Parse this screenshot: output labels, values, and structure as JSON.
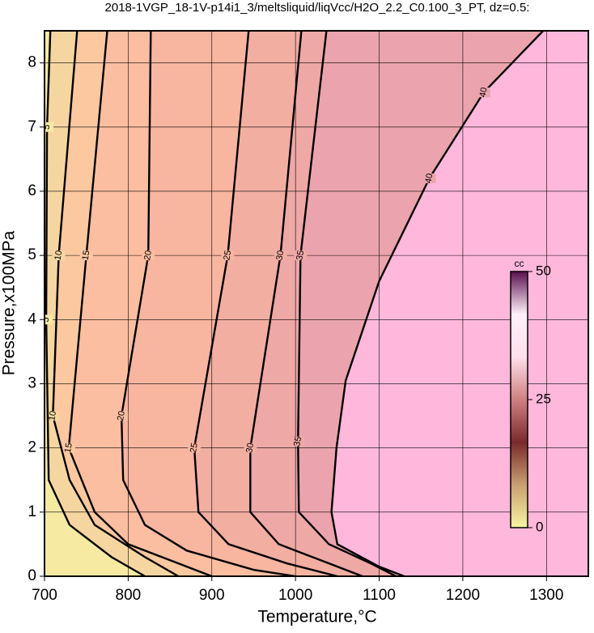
{
  "chart_data": {
    "type": "contour",
    "title": "2018-1VGP_18-1V-p14i1_3/meltsliquid/liqVcc/H2O_2.2_C0.100_3_PT, dz=0.5:",
    "xlabel": "Temperature,°C",
    "ylabel": "Pressure,x100MPa",
    "xlim": [
      700,
      1350
    ],
    "ylim": [
      0,
      8.5
    ],
    "xticks": [
      700,
      800,
      900,
      1000,
      1100,
      1200,
      1300
    ],
    "yticks": [
      0,
      1,
      2,
      3,
      4,
      5,
      6,
      7,
      8
    ],
    "grid": true,
    "above_color": "#ffb8dc",
    "contours": [
      {
        "level": 40,
        "color": "#eba4ad",
        "x": [
          1296,
          1225,
          1160,
          1100,
          1060,
          1049,
          1043,
          1050,
          1100,
          1130
        ],
        "y": [
          8.5,
          7.54,
          6.2,
          4.6,
          3.05,
          2,
          1,
          0.5,
          0.15,
          0
        ]
      },
      {
        "level": 35,
        "color": "#eea8a6",
        "x": [
          1037,
          1006,
          1003,
          1004,
          1040,
          1090,
          1120
        ],
        "y": [
          8.5,
          5,
          2.1,
          1,
          0.5,
          0.2,
          0
        ]
      },
      {
        "level": 30,
        "color": "#f3aea2",
        "x": [
          1007,
          982,
          946,
          946,
          980,
          1040,
          1080
        ],
        "y": [
          8.5,
          5,
          2,
          1,
          0.5,
          0.2,
          0
        ]
      },
      {
        "level": 25,
        "color": "#f8b5a0",
        "x": [
          944,
          919,
          879,
          884,
          920,
          990,
          1050
        ],
        "y": [
          8.5,
          5,
          2,
          1,
          0.5,
          0.2,
          0
        ]
      },
      {
        "level": 20,
        "color": "#fcbea0",
        "x": [
          827,
          824,
          792,
          794,
          820,
          870,
          950,
          1000
        ],
        "y": [
          8.5,
          5,
          2.5,
          1.5,
          0.8,
          0.4,
          0.1,
          0
        ]
      },
      {
        "level": 15,
        "color": "#fbc8a0",
        "x": [
          775,
          750,
          729,
          760,
          800,
          860,
          900
        ],
        "y": [
          8.5,
          5,
          2,
          1,
          0.5,
          0.2,
          0
        ]
      },
      {
        "level": 10,
        "color": "#f6d6a0",
        "x": [
          739,
          717,
          710,
          730,
          760,
          820,
          860
        ],
        "y": [
          8.5,
          5,
          2.5,
          1.5,
          0.8,
          0.3,
          0
        ]
      },
      {
        "level": 5,
        "color": "#f6eaa2",
        "x": [
          707,
          703,
          702,
          705,
          730,
          780,
          820
        ],
        "y": [
          8.5,
          7,
          4,
          1.5,
          0.8,
          0.3,
          0
        ]
      }
    ],
    "colorbar": {
      "label": "cc",
      "lim": [
        0,
        50
      ],
      "ticks": [
        0,
        25,
        50
      ],
      "colors": [
        "#f8f4a0",
        "#c8a070",
        "#7a2a2a",
        "#d08080",
        "#ffe0ec",
        "#fff0fa",
        "#5a1050"
      ]
    }
  }
}
